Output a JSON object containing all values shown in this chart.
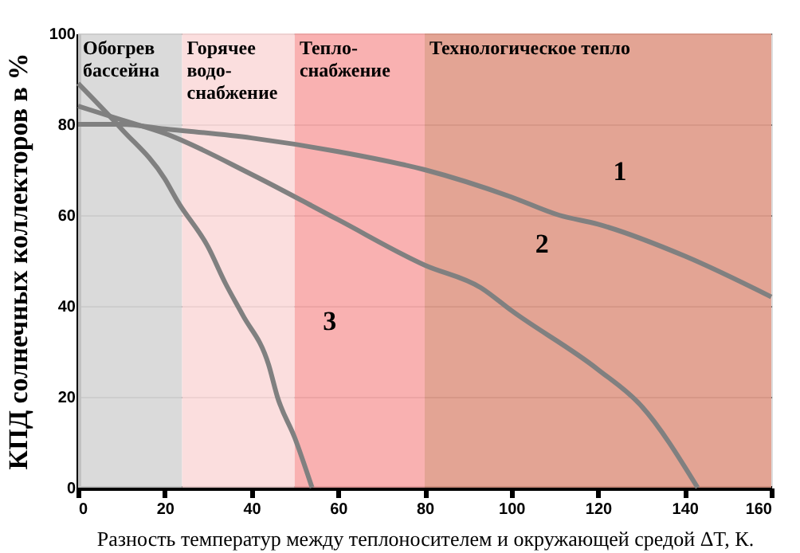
{
  "chart_data": {
    "type": "line",
    "xlabel": "Разность температур между теплоносителем и окружающей средой ΔT, К.",
    "ylabel": "КПД солнечных коллекторов в %",
    "xlim": [
      0,
      160
    ],
    "xticks": [
      0,
      20,
      40,
      60,
      80,
      100,
      120,
      140,
      160
    ],
    "ylim": [
      0,
      100
    ],
    "yticks": [
      0,
      20,
      40,
      60,
      80,
      100
    ],
    "grid": "y",
    "line_style": "solid",
    "marker": "none",
    "series": [
      {
        "color": "#808080",
        "x": [
          0,
          10,
          20,
          40,
          60,
          80,
          100,
          111,
          120,
          140,
          160
        ],
        "values": [
          80,
          80,
          79,
          77,
          74,
          70,
          64,
          60,
          58,
          51,
          42
        ]
      },
      {
        "color": "#808080",
        "x": [
          0,
          10,
          20,
          40,
          60,
          80,
          93,
          100,
          120,
          130,
          143
        ],
        "values": [
          84,
          81,
          78,
          69,
          59,
          49,
          44,
          39,
          26,
          18,
          0
        ]
      },
      {
        "color": "#808080",
        "x": [
          0,
          10,
          20,
          23,
          30,
          34,
          38,
          44,
          46,
          50,
          54
        ],
        "values": [
          89,
          79,
          68,
          63,
          53,
          45,
          38,
          27,
          20,
          11,
          0
        ]
      }
    ],
    "bands": [
      {
        "axis": "x",
        "from": 0,
        "to": 24,
        "label": "Обогрев\nбассейна",
        "color": "#d6d6d6"
      },
      {
        "axis": "x",
        "from": 24,
        "to": 50,
        "label": "Горячее\nводо-\nснабжение",
        "color": "#fbdada"
      },
      {
        "axis": "x",
        "from": 50,
        "to": 80,
        "label": "Тепло-\nснабжение",
        "color": "#f8a8a8"
      },
      {
        "axis": "x",
        "from": 80,
        "to": 160,
        "label": "Технологическое тепло",
        "color": "#e09a88"
      }
    ],
    "annotations": [
      {
        "text": "1",
        "x": 111,
        "y": 60
      },
      {
        "text": "2",
        "x": 93,
        "y": 44
      },
      {
        "text": "3",
        "x": 44,
        "y": 27
      }
    ]
  }
}
